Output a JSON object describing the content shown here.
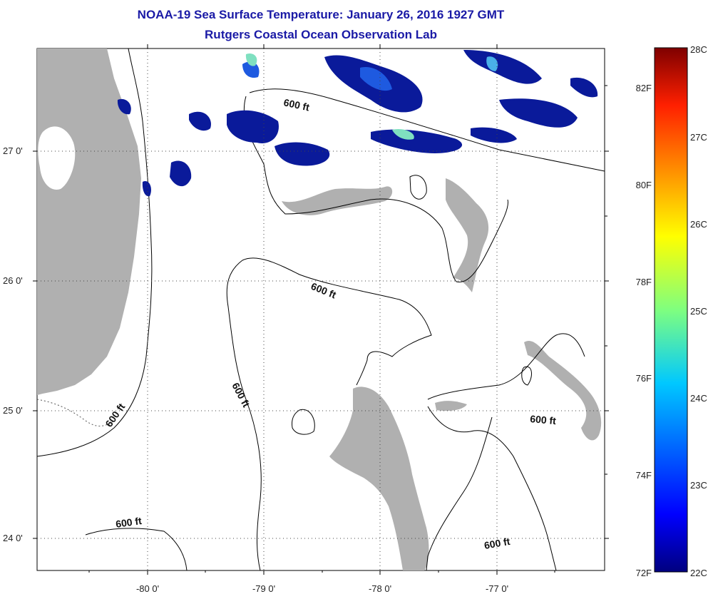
{
  "header": {
    "title": "NOAA-19 Sea Surface Temperature:  January 26, 2016 1927 GMT",
    "subtitle": "Rutgers Coastal Ocean Observation Lab"
  },
  "map": {
    "lon_range": [
      -80.9,
      -77.0
    ],
    "lat_range": [
      23.75,
      27.8
    ],
    "lon_ticks": [
      {
        "value": -80,
        "label": "-80 0'"
      },
      {
        "value": -79,
        "label": "-79 0'"
      },
      {
        "value": -78,
        "label": "-78 0'"
      },
      {
        "value": -77,
        "label": "-77 0'"
      }
    ],
    "lat_ticks": [
      {
        "value": 27,
        "label": "27 0'"
      },
      {
        "value": 26,
        "label": "26 0'"
      },
      {
        "value": 25,
        "label": "25 0'"
      },
      {
        "value": 24,
        "label": "24 0'"
      }
    ],
    "grid": "dotted",
    "contour_labels": [
      "600 ft",
      "600 ft",
      "600 ft",
      "600 ft",
      "600 ft",
      "600 ft",
      "600 ft"
    ],
    "colors": {
      "land": "#b0b0b0",
      "ocean": "#ffffff",
      "sst_low": "#0a1a9a",
      "sst_mid": "#1e5ae0",
      "sst_high": "#7fe0c0"
    }
  },
  "colorbar": {
    "celsius": [
      "28C",
      "27C",
      "26C",
      "25C",
      "24C",
      "23C",
      "22C"
    ],
    "fahrenheit": [
      "82F",
      "80F",
      "78F",
      "76F",
      "74F",
      "72F"
    ],
    "range_c": [
      22,
      28
    ]
  }
}
